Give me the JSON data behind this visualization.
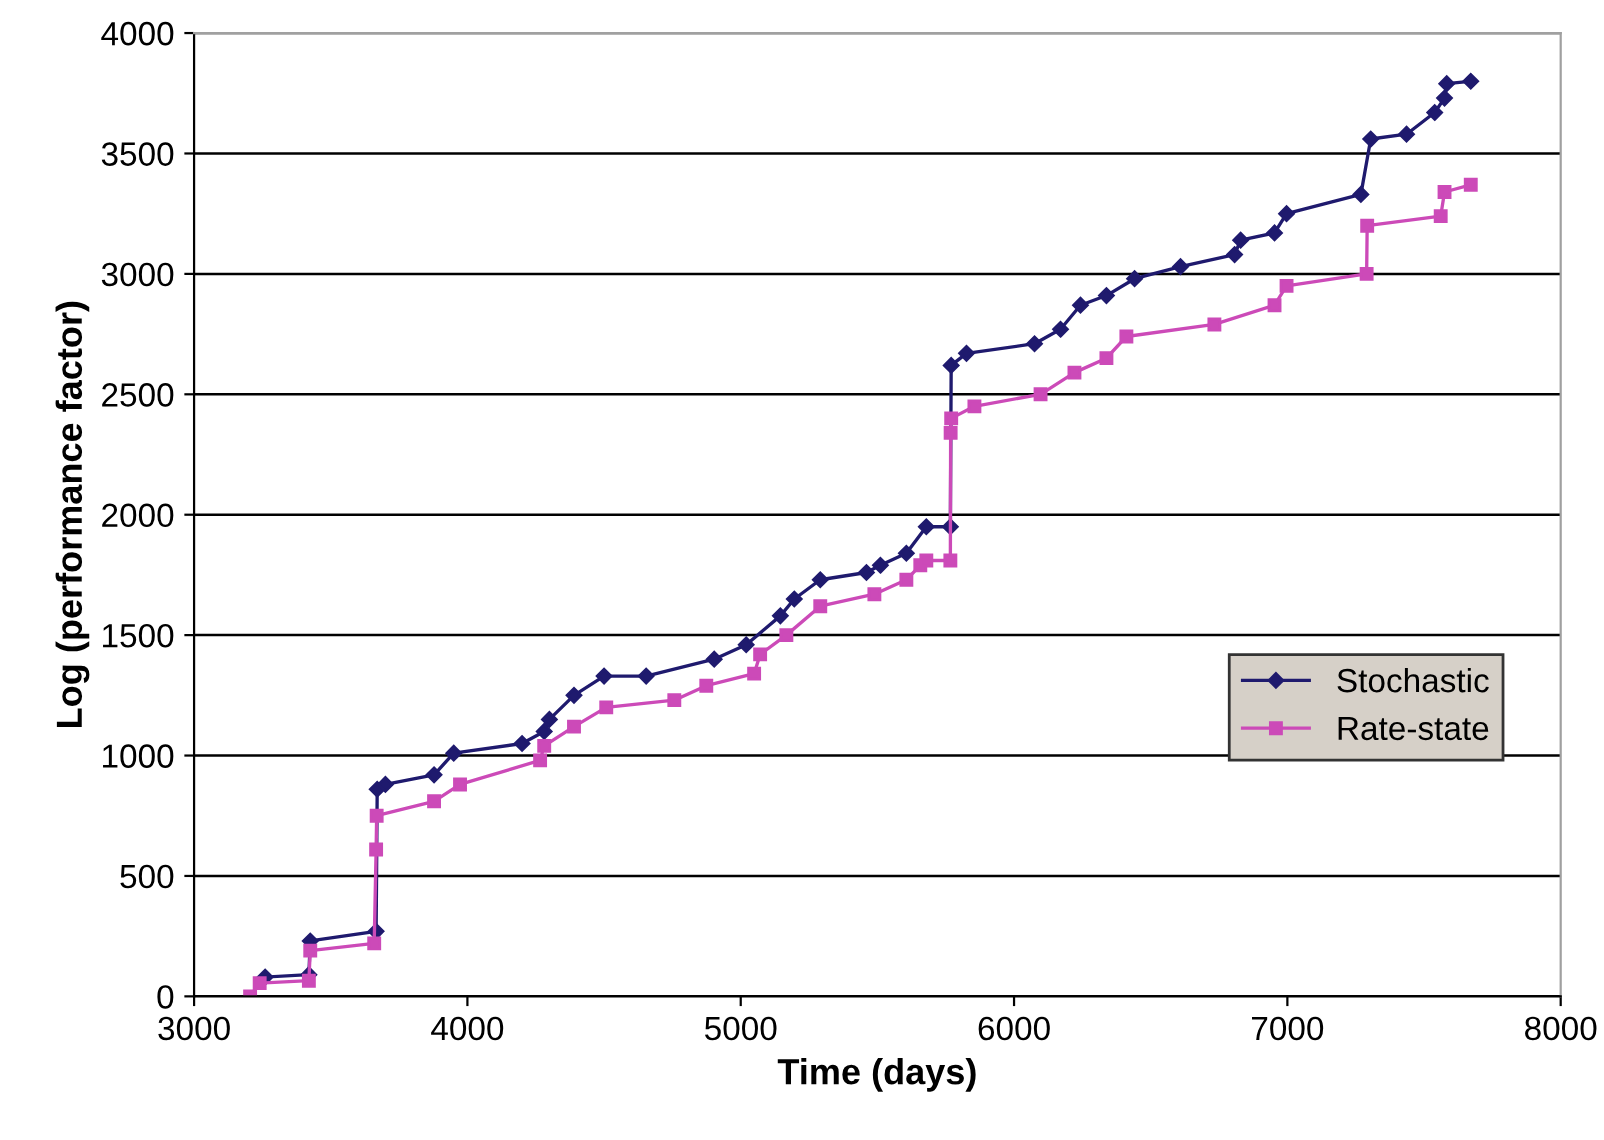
{
  "chart_data": {
    "type": "line",
    "xlabel": "Time (days)",
    "ylabel": "Log (performance factor)",
    "xlim": [
      3000,
      8000
    ],
    "xticks": [
      3000,
      4000,
      5000,
      6000,
      7000,
      8000
    ],
    "ylim": [
      0,
      4000
    ],
    "yticks": [
      0,
      500,
      1000,
      1500,
      2000,
      2500,
      3000,
      3500,
      4000
    ],
    "grid": "y",
    "legend": "right",
    "series": [
      {
        "name": "Stochastic",
        "color": "#1f1a6e",
        "marker": "diamond",
        "x": [
          3260,
          3420,
          3425,
          3666,
          3670,
          3700,
          3878,
          3950,
          4200,
          4281,
          4300,
          4390,
          4500,
          4654,
          4903,
          5020,
          5145,
          5196,
          5291,
          5460,
          5511,
          5606,
          5679,
          5767,
          5770,
          5826,
          6075,
          6170,
          6243,
          6338,
          6441,
          6609,
          6807,
          6829,
          6953,
          6997,
          7269,
          7305,
          7436,
          7539,
          7575,
          7583,
          7671
        ],
        "values": [
          80,
          90,
          230,
          270,
          860,
          880,
          920,
          1010,
          1050,
          1100,
          1150,
          1250,
          1330,
          1330,
          1400,
          1460,
          1580,
          1650,
          1730,
          1760,
          1790,
          1840,
          1950,
          1950,
          2620,
          2670,
          2710,
          2770,
          2870,
          2910,
          2980,
          3030,
          3080,
          3140,
          3170,
          3250,
          3330,
          3560,
          3580,
          3670,
          3730,
          3790,
          3800
        ]
      },
      {
        "name": "Rate-state",
        "color": "#cc4ab8",
        "marker": "square",
        "x": [
          3205,
          3240,
          3420,
          3425,
          3659,
          3666,
          3668,
          3878,
          3973,
          4266,
          4281,
          4390,
          4508,
          4757,
          4874,
          5049,
          5071,
          5167,
          5291,
          5489,
          5606,
          5657,
          5679,
          5767,
          5768,
          5770,
          5855,
          6097,
          6221,
          6338,
          6411,
          6733,
          6953,
          6997,
          7290,
          7292,
          7561,
          7575,
          7671
        ],
        "values": [
          0,
          55,
          65,
          190,
          220,
          610,
          750,
          810,
          880,
          980,
          1040,
          1120,
          1200,
          1230,
          1290,
          1340,
          1420,
          1500,
          1620,
          1670,
          1730,
          1790,
          1810,
          1810,
          2340,
          2400,
          2450,
          2500,
          2590,
          2650,
          2740,
          2790,
          2870,
          2950,
          3000,
          3200,
          3240,
          3340,
          3370
        ]
      }
    ]
  }
}
